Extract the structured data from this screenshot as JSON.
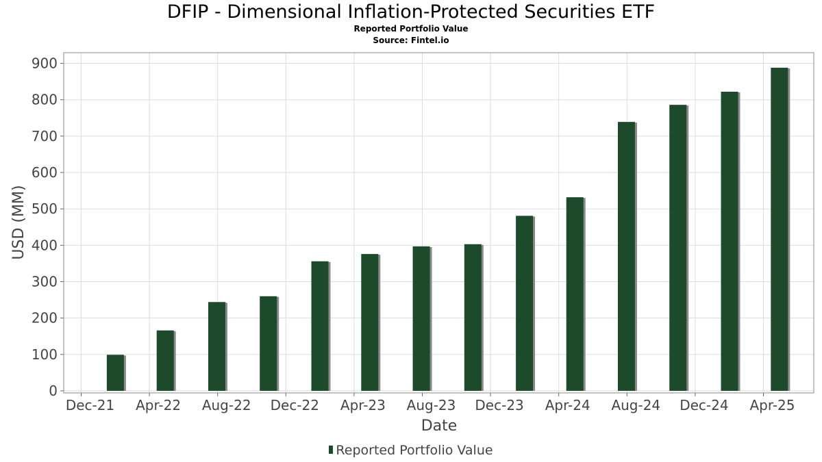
{
  "title": "DFIP - Dimensional Inflation-Protected Securities ETF",
  "subtitle": "Reported Portfolio Value",
  "source": "Source: Fintel.io",
  "colors": {
    "bar": "#1e4a2c",
    "bar_shadow": "#8a8a8a",
    "grid": "#dddddd",
    "frame": "#888888"
  },
  "chart_data": {
    "type": "bar",
    "title": "DFIP - Dimensional Inflation-Protected Securities ETF",
    "subtitle": "Reported Portfolio Value",
    "xlabel": "Date",
    "ylabel": "USD (MM)",
    "ylim": [
      0,
      930
    ],
    "yticks": [
      0,
      100,
      200,
      300,
      400,
      500,
      600,
      700,
      800,
      900
    ],
    "xticks": [
      "Dec-21",
      "Apr-22",
      "Aug-22",
      "Dec-22",
      "Apr-23",
      "Aug-23",
      "Dec-23",
      "Apr-24",
      "Aug-24",
      "Dec-24",
      "Apr-25"
    ],
    "grid": true,
    "legend_position": "bottom",
    "series": [
      {
        "name": "Reported Portfolio Value",
        "x": [
          "2022-01-31",
          "2022-04-30",
          "2022-07-31",
          "2022-10-31",
          "2023-01-31",
          "2023-04-30",
          "2023-07-31",
          "2023-10-31",
          "2024-01-31",
          "2024-04-30",
          "2024-07-31",
          "2024-10-31",
          "2025-01-31",
          "2025-04-30"
        ],
        "values": [
          99,
          166,
          244,
          260,
          356,
          376,
          397,
          403,
          481,
          532,
          739,
          786,
          822,
          888
        ]
      }
    ]
  }
}
